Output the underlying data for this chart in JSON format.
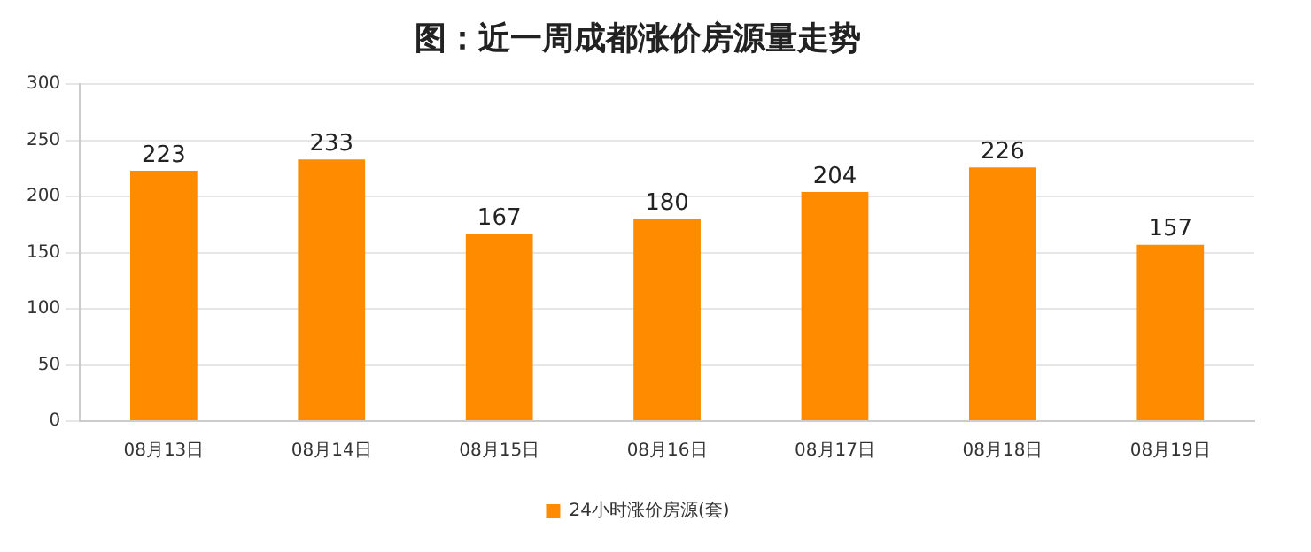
{
  "chart_data": {
    "type": "bar",
    "title": "图：近一周成都涨价房源量走势",
    "categories": [
      "08月13日",
      "08月14日",
      "08月15日",
      "08月16日",
      "08月17日",
      "08月18日",
      "08月19日"
    ],
    "series": [
      {
        "name": "24小时涨价房源(套)",
        "color": "#ff8c00",
        "values": [
          223,
          233,
          167,
          180,
          204,
          226,
          157
        ]
      }
    ],
    "ylim": [
      0,
      300
    ],
    "yticks": [
      0,
      50,
      100,
      150,
      200,
      250,
      300
    ],
    "grid": "y",
    "legend": "bottom",
    "data_labels": true
  }
}
